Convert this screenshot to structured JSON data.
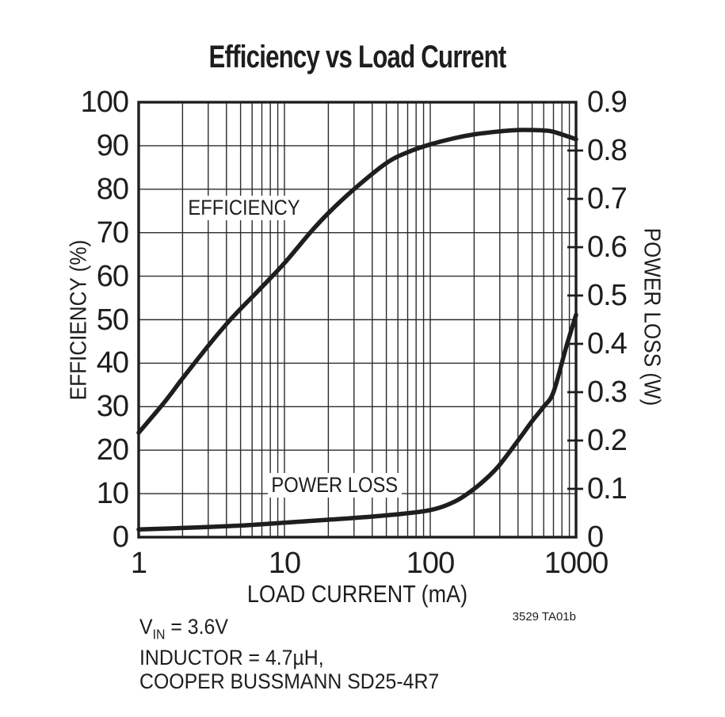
{
  "figure": {
    "code": "3529 TA01b",
    "note_vin": {
      "prefix": "V",
      "sub": "IN",
      "rest": " = 3.6V"
    },
    "note_inductor": "INDUCTOR = 4.7µH,",
    "note_part": "COOPER BUSSMANN SD25-4R7"
  },
  "colors": {
    "ink": "#1e1e1e",
    "grid": "#2b2b2b",
    "background": "#ffffff"
  },
  "chart_data": {
    "type": "line",
    "title": "Efficiency vs Load Current",
    "xlabel": "LOAD CURRENT (mA)",
    "x_scale": "log",
    "xlim": [
      1,
      1000
    ],
    "x_ticks": [
      "1",
      "10",
      "100",
      "1000"
    ],
    "grid": "log minor verticals each decade, horizontal every 10%",
    "legend_position": "inline-labels-on-plot",
    "left_axis": {
      "label": "EFFICIENCY (%)",
      "lim": [
        0,
        100
      ],
      "ticks": [
        "0",
        "10",
        "20",
        "30",
        "40",
        "50",
        "60",
        "70",
        "80",
        "90",
        "100"
      ]
    },
    "right_axis": {
      "label": "POWER LOSS (W)",
      "lim": [
        0,
        0.9
      ],
      "ticks": [
        "0",
        "0.1",
        "0.2",
        "0.3",
        "0.4",
        "0.5",
        "0.6",
        "0.7",
        "0.8",
        "0.9"
      ]
    },
    "series": [
      {
        "name": "EFFICIENCY",
        "axis": "left",
        "units": "%",
        "points": [
          [
            1,
            24
          ],
          [
            1.5,
            31
          ],
          [
            2,
            36.5
          ],
          [
            3,
            44
          ],
          [
            4,
            49
          ],
          [
            5,
            52.5
          ],
          [
            7,
            57.5
          ],
          [
            10,
            63
          ],
          [
            15,
            70
          ],
          [
            20,
            74.5
          ],
          [
            30,
            80
          ],
          [
            50,
            86
          ],
          [
            70,
            88.5
          ],
          [
            100,
            90.3
          ],
          [
            150,
            91.8
          ],
          [
            200,
            92.6
          ],
          [
            300,
            93.3
          ],
          [
            400,
            93.6
          ],
          [
            500,
            93.6
          ],
          [
            600,
            93.5
          ],
          [
            700,
            93.2
          ],
          [
            1000,
            91.5
          ]
        ]
      },
      {
        "name": "POWER LOSS",
        "axis": "right",
        "units": "W",
        "points": [
          [
            1,
            0.016
          ],
          [
            2,
            0.019
          ],
          [
            5,
            0.024
          ],
          [
            10,
            0.03
          ],
          [
            20,
            0.036
          ],
          [
            50,
            0.045
          ],
          [
            100,
            0.056
          ],
          [
            150,
            0.075
          ],
          [
            200,
            0.1
          ],
          [
            250,
            0.125
          ],
          [
            300,
            0.15
          ],
          [
            400,
            0.2
          ],
          [
            500,
            0.24
          ],
          [
            600,
            0.27
          ],
          [
            700,
            0.3
          ],
          [
            850,
            0.39
          ],
          [
            1000,
            0.46
          ]
        ]
      }
    ]
  }
}
